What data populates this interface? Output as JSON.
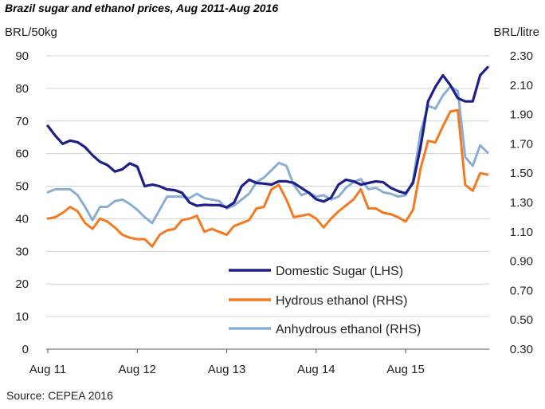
{
  "chart_data": {
    "type": "line",
    "title": "Brazil sugar and ethanol prices, Aug 2011-Aug 2016",
    "source": "Source: CEPEA 2016",
    "left_axis": {
      "label": "BRL/50kg",
      "ylim": [
        0,
        90
      ],
      "ticks": [
        0,
        10,
        20,
        30,
        40,
        50,
        60,
        70,
        80,
        90
      ]
    },
    "right_axis": {
      "label": "BRL/litre",
      "ylim": [
        0.3,
        2.3
      ],
      "ticks": [
        "0.30",
        "0.50",
        "0.70",
        "0.90",
        "1.10",
        "1.30",
        "1.50",
        "1.70",
        "1.90",
        "2.10",
        "2.30"
      ]
    },
    "x_labels": [
      "Aug 11",
      "Aug 12",
      "Aug 13",
      "Aug 14",
      "Aug 15"
    ],
    "x_label_index": [
      0,
      12,
      24,
      36,
      48
    ],
    "xlim": [
      0,
      60
    ],
    "grid": true,
    "legend_position": "bottom-right",
    "series": [
      {
        "name": "Domestic Sugar (LHS)",
        "axis": "left",
        "color": "#1f1f8c",
        "values": [
          68.5,
          65.5,
          63,
          64,
          63.5,
          62,
          59.5,
          57.5,
          56.5,
          54.5,
          55.2,
          57,
          56,
          50,
          50.5,
          50,
          49,
          48.8,
          48,
          45,
          44,
          44.3,
          44.2,
          44.2,
          43.5,
          45,
          50,
          52,
          51,
          50.8,
          50.5,
          51.5,
          51.5,
          51,
          49.5,
          48,
          46,
          45.3,
          46.5,
          50.5,
          52,
          51.5,
          50.5,
          51,
          51.5,
          51.2,
          49.5,
          48.5,
          47.8,
          51,
          62,
          76,
          80.5,
          84,
          81,
          77,
          76,
          76,
          84,
          86.5
        ]
      },
      {
        "name": "Hydrous ethanol (RHS)",
        "axis": "right",
        "color": "#f47920",
        "values": [
          1.19,
          1.2,
          1.23,
          1.27,
          1.24,
          1.16,
          1.12,
          1.19,
          1.17,
          1.13,
          1.08,
          1.06,
          1.05,
          1.05,
          1.0,
          1.08,
          1.11,
          1.12,
          1.18,
          1.19,
          1.21,
          1.1,
          1.12,
          1.1,
          1.08,
          1.14,
          1.16,
          1.18,
          1.26,
          1.27,
          1.39,
          1.42,
          1.32,
          1.2,
          1.21,
          1.22,
          1.19,
          1.13,
          1.19,
          1.24,
          1.28,
          1.32,
          1.39,
          1.26,
          1.26,
          1.23,
          1.22,
          1.2,
          1.17,
          1.25,
          1.53,
          1.72,
          1.71,
          1.82,
          1.92,
          1.93,
          1.42,
          1.38,
          1.5,
          1.49
        ]
      },
      {
        "name": "Anhydrous ethanol (RHS)",
        "axis": "right",
        "color": "#8aaed3",
        "values": [
          1.37,
          1.39,
          1.39,
          1.39,
          1.35,
          1.27,
          1.18,
          1.27,
          1.27,
          1.31,
          1.32,
          1.29,
          1.25,
          1.2,
          1.16,
          1.25,
          1.34,
          1.34,
          1.34,
          1.33,
          1.36,
          1.33,
          1.32,
          1.31,
          1.26,
          1.28,
          1.32,
          1.36,
          1.44,
          1.47,
          1.52,
          1.57,
          1.55,
          1.42,
          1.35,
          1.37,
          1.34,
          1.35,
          1.32,
          1.34,
          1.4,
          1.44,
          1.46,
          1.39,
          1.4,
          1.37,
          1.36,
          1.34,
          1.35,
          1.45,
          1.78,
          1.96,
          1.94,
          2.03,
          2.09,
          2.06,
          1.61,
          1.55,
          1.69,
          1.64
        ]
      }
    ]
  }
}
